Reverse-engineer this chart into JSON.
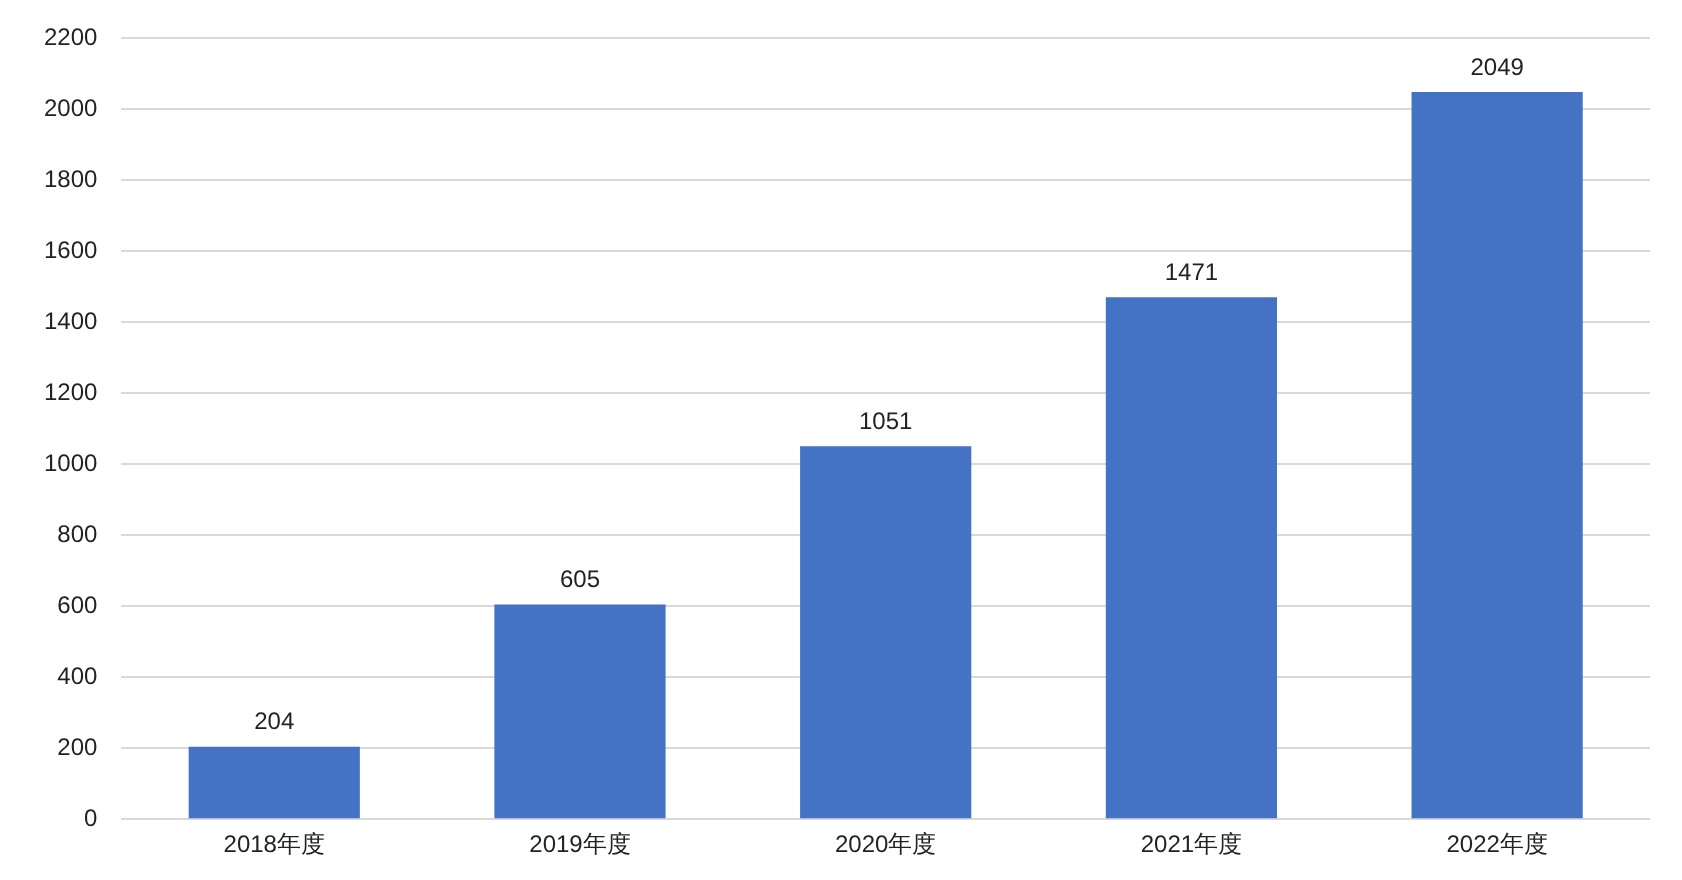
{
  "chart_data": {
    "type": "bar",
    "categories": [
      "2018年度",
      "2019年度",
      "2020年度",
      "2021年度",
      "2022年度"
    ],
    "values": [
      204,
      605,
      1051,
      1471,
      2049
    ],
    "color": "#4472c4",
    "ylim": [
      0,
      2200
    ],
    "yticks": [
      0,
      200,
      400,
      600,
      800,
      1000,
      1200,
      1400,
      1600,
      1800,
      2000,
      2200
    ],
    "grid": "y",
    "data_labels": true,
    "legend": false
  }
}
